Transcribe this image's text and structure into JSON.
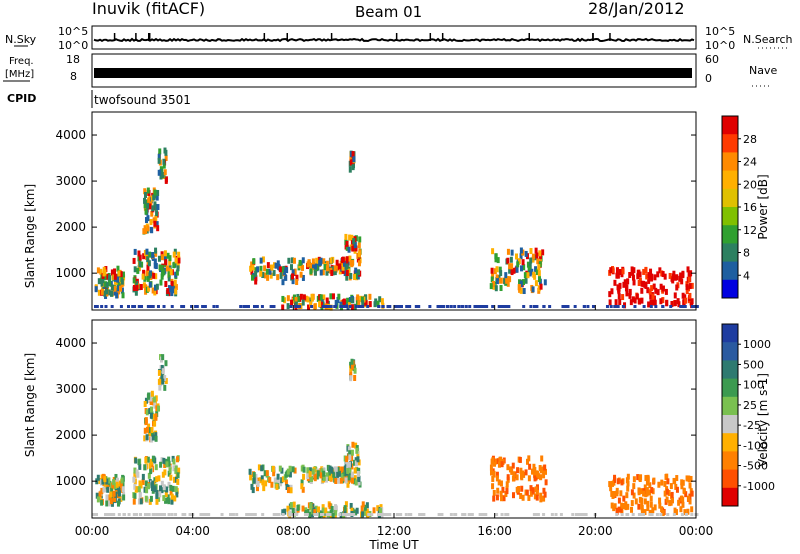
{
  "header": {
    "station": "Inuvik (fitACF)",
    "beam": "Beam 01",
    "date": "28/Jan/2012"
  },
  "nsky_panel": {
    "left_label": "N.Sky",
    "right_label": "N.Search",
    "left_ticks": [
      "10^5",
      "10^0"
    ],
    "right_ticks": [
      "10^5",
      "10^0"
    ]
  },
  "freq_panel": {
    "left_label_1": "Freq.",
    "left_label_2": "[MHz]",
    "left_ticks": [
      "18",
      "8"
    ],
    "right_label": "Nave",
    "right_ticks": [
      "60",
      "0"
    ]
  },
  "cpid_panel": {
    "label": "CPID",
    "program": "twofsound 3501"
  },
  "chart_data": [
    {
      "type": "heatmap",
      "name": "power",
      "ylabel": "Slant Range [km]",
      "ylim": [
        200,
        4500
      ],
      "yticks": [
        "1000",
        "2000",
        "3000",
        "4000"
      ],
      "xlim": [
        0,
        24
      ],
      "colorbar": {
        "label": "Power [dB]",
        "ticks": [
          "28",
          "24",
          "20",
          "16",
          "12",
          "8",
          "4"
        ],
        "colors": [
          "#e00000",
          "#ff3a00",
          "#ff8a00",
          "#ffb000",
          "#e0c000",
          "#80c000",
          "#30a030",
          "#2c8060",
          "#1e5fa0",
          "#0000e0"
        ]
      }
    },
    {
      "type": "heatmap",
      "name": "velocity",
      "ylabel": "Slant Range [km]",
      "ylim": [
        200,
        4500
      ],
      "yticks": [
        "1000",
        "2000",
        "3000",
        "4000"
      ],
      "xlim": [
        0,
        24
      ],
      "xlabel": "Time UT",
      "xticks": [
        "00:00",
        "04:00",
        "08:00",
        "12:00",
        "16:00",
        "20:00",
        "00:00"
      ],
      "colorbar": {
        "label": "Velocity [m s-1]",
        "ticks": [
          "1000",
          "500",
          "100",
          "25",
          "-25",
          "-100",
          "-500",
          "-1000"
        ],
        "colors": [
          "#1e3ca0",
          "#2a5aa0",
          "#2e7a70",
          "#3c9a50",
          "#7ac050",
          "#c8c8c8",
          "#ffb000",
          "#ff8000",
          "#ff5000",
          "#e00000"
        ]
      }
    }
  ]
}
